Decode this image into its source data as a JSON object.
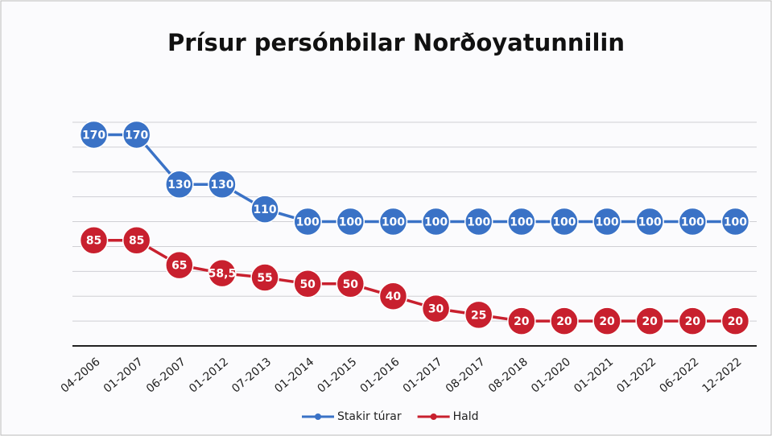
{
  "chart_data": {
    "type": "line",
    "title": "Prísur persónbilar Norðoyatunnilin",
    "categories": [
      "04-2006",
      "01-2007",
      "06-2007",
      "01-2012",
      "07-2013",
      "01-2014",
      "01-2015",
      "01-2016",
      "01-2017",
      "08-2017",
      "08-2018",
      "01-2020",
      "01-2021",
      "01-2022",
      "06-2022",
      "12-2022"
    ],
    "series": [
      {
        "name": "Stakir túrar",
        "color": "#3a72c6",
        "values": [
          170,
          170,
          130,
          130,
          110,
          100,
          100,
          100,
          100,
          100,
          100,
          100,
          100,
          100,
          100,
          100
        ]
      },
      {
        "name": "Hald",
        "color": "#c8202e",
        "values": [
          85,
          85,
          65,
          58.5,
          55,
          50,
          50,
          40,
          30,
          25,
          20,
          20,
          20,
          20,
          20,
          20
        ],
        "value_labels": [
          "85",
          "85",
          "65",
          "58,5",
          "55",
          "50",
          "50",
          "40",
          "30",
          "25",
          "20",
          "20",
          "20",
          "20",
          "20",
          "20"
        ]
      }
    ],
    "ylim": [
      0,
      180
    ],
    "yticks": [
      0,
      20,
      40,
      60,
      80,
      100,
      120,
      140,
      160,
      180
    ],
    "grid": true,
    "legend": "bottom"
  }
}
